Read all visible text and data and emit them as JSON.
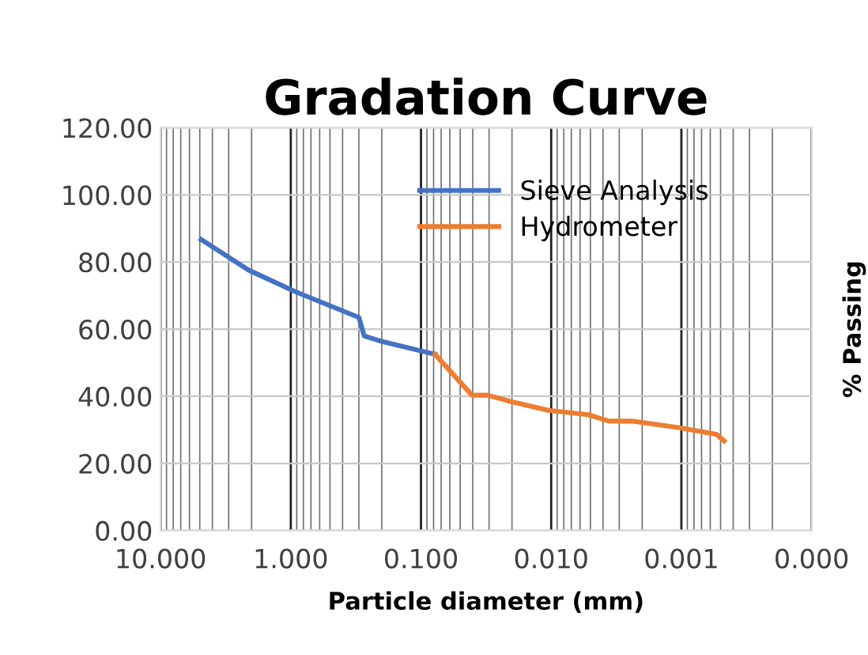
{
  "chart_data": {
    "type": "line",
    "title": "Gradation Curve",
    "xlabel": "Particle diameter (mm)",
    "ylabel": "% Passing",
    "series": [
      {
        "name": "Sieve Analysis",
        "color": "#4472c4",
        "x": [
          4.88,
          2.11,
          0.915,
          0.3,
          0.273,
          0.207,
          0.078
        ],
        "values": [
          86.7,
          77.6,
          71.1,
          63.5,
          58.0,
          56.5,
          52.5
        ]
      },
      {
        "name": "Hydrometer",
        "color": "#ed7d31",
        "x": [
          0.078,
          0.0406,
          0.0307,
          0.0202,
          0.0105,
          0.0052,
          0.0036,
          0.0024,
          0.00103,
          0.00054,
          0.00047
        ],
        "values": [
          52.5,
          40.3,
          40.3,
          38.4,
          35.8,
          34.5,
          32.6,
          32.6,
          30.6,
          28.7,
          26.7
        ]
      }
    ],
    "log": "x",
    "xlim": [
      10,
      0.0001
    ],
    "ylim": [
      0,
      120
    ],
    "xticks": [
      {
        "value": 10,
        "label": "10.000"
      },
      {
        "value": 1,
        "label": "1.000"
      },
      {
        "value": 0.1,
        "label": "0.100"
      },
      {
        "value": 0.01,
        "label": "0.010"
      },
      {
        "value": 0.001,
        "label": "0.001"
      },
      {
        "value": 0.0001,
        "label": "0.000"
      }
    ],
    "yticks": [
      {
        "value": 0,
        "label": "0.00"
      },
      {
        "value": 20,
        "label": "20.00"
      },
      {
        "value": 40,
        "label": "40.00"
      },
      {
        "value": 60,
        "label": "60.00"
      },
      {
        "value": 80,
        "label": "80.00"
      },
      {
        "value": 100,
        "label": "100.00"
      },
      {
        "value": 120,
        "label": "120.00"
      }
    ],
    "grid": true,
    "legend": "top",
    "marker": "none",
    "line_style": "solid"
  }
}
